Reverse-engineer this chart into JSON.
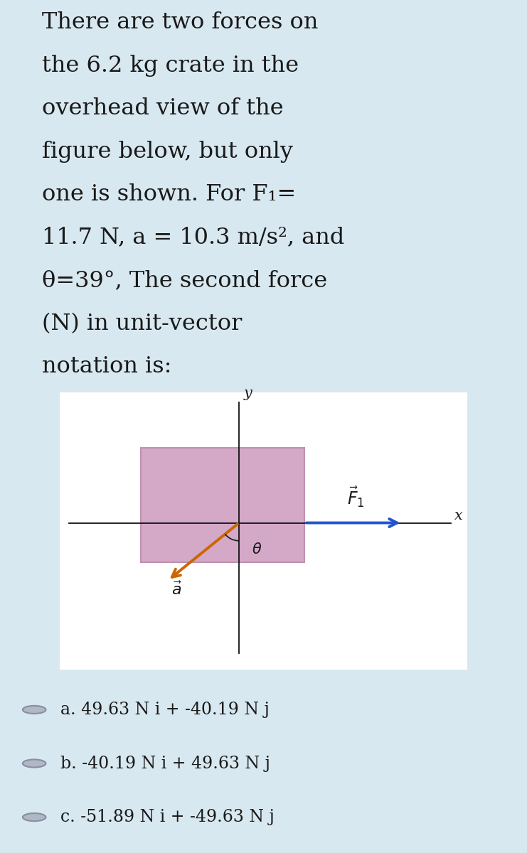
{
  "bg_color": "#d8e8f0",
  "bg_color_diagram": "#ffffff",
  "bg_color_choices": "#dce8f0",
  "text_color": "#1a1a1a",
  "problem_text_lines": [
    "There are two forces on",
    "the 6.2 kg crate in the",
    "overhead view of the",
    "figure below, but only",
    "one is shown. For F₁=",
    "11.7 N, a = 10.3 m/s², and",
    "θ=39°, The second force",
    "(N) in unit-vector",
    "notation is:"
  ],
  "crate_color": "#d4a8c7",
  "crate_edge_color": "#c090b0",
  "axis_color": "#111111",
  "F1_arrow_color": "#2255cc",
  "accel_arrow_color": "#cc6600",
  "choices": [
    "a. 49.63 N i + -40.19 N j",
    "b. -40.19 N i + 49.63 N j",
    "c. -51.89 N i + -49.63 N j"
  ],
  "choice_fontsize": 17,
  "problem_fontsize": 23,
  "diagram_fontsize": 15,
  "radio_color": "#b0b8c8",
  "radio_edge_color": "#8890a0"
}
